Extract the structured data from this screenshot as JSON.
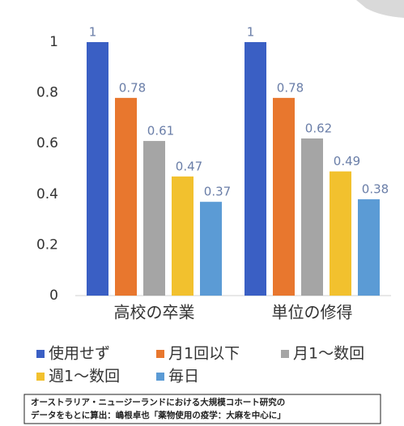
{
  "chart_data": {
    "type": "bar",
    "categories": [
      "高校の卒業",
      "単位の修得"
    ],
    "series": [
      {
        "name": "使用せず",
        "color": "#3a5fc4",
        "values": [
          1,
          1
        ]
      },
      {
        "name": "月1回以下",
        "color": "#e8772e",
        "values": [
          0.78,
          0.78
        ]
      },
      {
        "name": "月1～数回",
        "color": "#a5a5a5",
        "values": [
          0.61,
          0.62
        ]
      },
      {
        "name": "週1～数回",
        "color": "#f2c12e",
        "values": [
          0.47,
          0.49
        ]
      },
      {
        "name": "毎日",
        "color": "#5b9bd5",
        "values": [
          0.37,
          0.38
        ]
      }
    ],
    "ylim": [
      0,
      1
    ],
    "yticks": [
      0,
      0.2,
      0.4,
      0.6,
      0.8,
      1
    ],
    "grid": false,
    "legend": "bottom",
    "source": [
      "オーストラリア・ニュージーランドにおける大規模コホート研究の",
      "データをもとに算出：嶋根卓也「薬物使用の疫学：大麻を中心に」"
    ]
  }
}
